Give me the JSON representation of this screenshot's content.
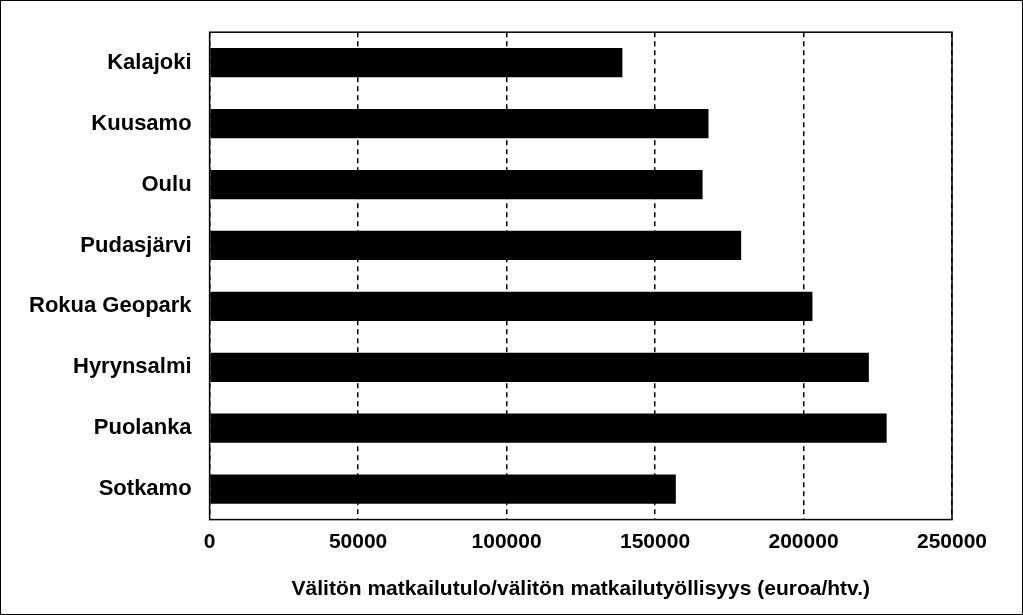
{
  "chart_data": {
    "type": "bar",
    "orientation": "horizontal",
    "categories": [
      "Kalajoki",
      "Kuusamo",
      "Oulu",
      "Pudasjärvi",
      "Rokua Geopark",
      "Hyrynsalmi",
      "Puolanka",
      "Sotkamo"
    ],
    "values": [
      139000,
      168000,
      166000,
      179000,
      203000,
      222000,
      228000,
      157000
    ],
    "color": "#000000",
    "xlabel": "Välitön matkailutulo/välitön matkailutyöllisyys (euroa/htv.)",
    "xlim": [
      0,
      250000
    ],
    "xticks": [
      0,
      50000,
      100000,
      150000,
      200000,
      250000
    ],
    "grid": true
  }
}
